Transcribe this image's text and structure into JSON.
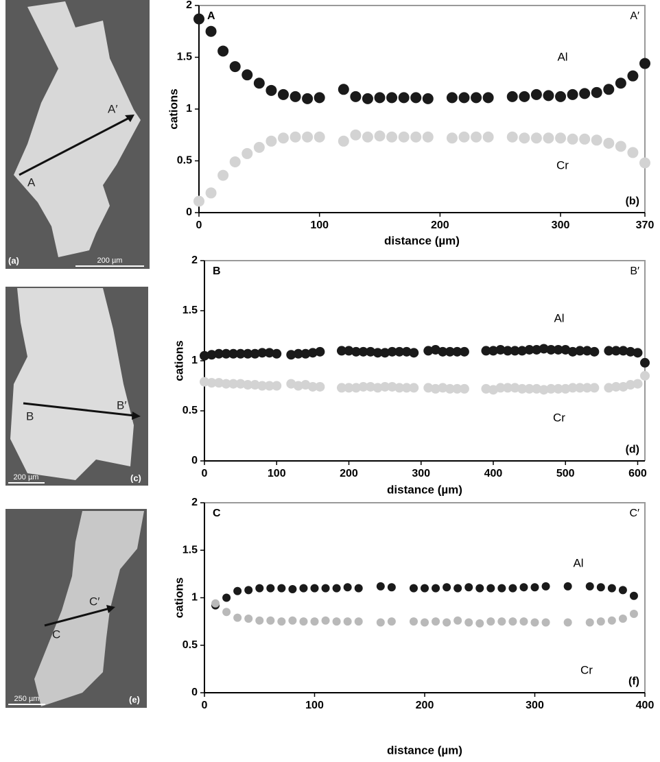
{
  "images": [
    {
      "panel": "(a)",
      "scale": "200 µm",
      "start": "A",
      "end": "A′"
    },
    {
      "panel": "(c)",
      "scale": "200 µm",
      "start": "B",
      "end": "B′"
    },
    {
      "panel": "(e)",
      "scale": "250 µm",
      "start": "C",
      "end": "C′"
    }
  ],
  "chart_data": [
    {
      "type": "scatter",
      "xlabel": "distance (µm)",
      "ylabel": "cations",
      "start_label": "A",
      "end_label": "A′",
      "panel_label": "(b)",
      "xlim": [
        0,
        370
      ],
      "xticks": [
        0,
        100,
        200,
        300,
        370
      ],
      "ylim": [
        0,
        2
      ],
      "yticks": [
        0,
        0.5,
        1,
        1.5,
        2
      ],
      "series": [
        {
          "name": "Al",
          "color": "#1a1a1a",
          "x": [
            0,
            10,
            20,
            30,
            40,
            50,
            60,
            70,
            80,
            90,
            100,
            120,
            130,
            140,
            150,
            160,
            170,
            180,
            190,
            210,
            220,
            230,
            240,
            260,
            270,
            280,
            290,
            300,
            310,
            320,
            330,
            340,
            350,
            360,
            370
          ],
          "values": [
            1.87,
            1.75,
            1.56,
            1.41,
            1.33,
            1.25,
            1.18,
            1.14,
            1.12,
            1.1,
            1.11,
            1.19,
            1.12,
            1.1,
            1.11,
            1.11,
            1.11,
            1.11,
            1.1,
            1.11,
            1.11,
            1.11,
            1.11,
            1.12,
            1.12,
            1.14,
            1.13,
            1.12,
            1.14,
            1.15,
            1.16,
            1.19,
            1.25,
            1.32,
            1.44
          ]
        },
        {
          "name": "Cr",
          "color": "#d3d3d3",
          "x": [
            0,
            10,
            20,
            30,
            40,
            50,
            60,
            70,
            80,
            90,
            100,
            120,
            130,
            140,
            150,
            160,
            170,
            180,
            190,
            210,
            220,
            230,
            240,
            260,
            270,
            280,
            290,
            300,
            310,
            320,
            330,
            340,
            350,
            360,
            370
          ],
          "values": [
            0.11,
            0.19,
            0.36,
            0.49,
            0.57,
            0.63,
            0.69,
            0.72,
            0.73,
            0.73,
            0.73,
            0.69,
            0.75,
            0.73,
            0.74,
            0.73,
            0.73,
            0.73,
            0.73,
            0.72,
            0.73,
            0.73,
            0.73,
            0.73,
            0.72,
            0.72,
            0.72,
            0.72,
            0.71,
            0.71,
            0.7,
            0.67,
            0.64,
            0.58,
            0.48
          ]
        }
      ]
    },
    {
      "type": "scatter",
      "xlabel": "distance (µm)",
      "ylabel": "cations",
      "start_label": "B",
      "end_label": "B′",
      "panel_label": "(d)",
      "xlim": [
        0,
        610
      ],
      "xticks": [
        0,
        100,
        200,
        300,
        400,
        500,
        600
      ],
      "ylim": [
        0,
        2
      ],
      "yticks": [
        0,
        0.5,
        1,
        1.5,
        2
      ],
      "series": [
        {
          "name": "Al",
          "color": "#1a1a1a",
          "x": [
            0,
            10,
            20,
            30,
            40,
            50,
            60,
            70,
            80,
            90,
            100,
            120,
            130,
            140,
            150,
            160,
            190,
            200,
            210,
            220,
            230,
            240,
            250,
            260,
            270,
            280,
            290,
            310,
            320,
            330,
            340,
            350,
            360,
            390,
            400,
            410,
            420,
            430,
            440,
            450,
            460,
            470,
            480,
            490,
            500,
            510,
            520,
            530,
            540,
            560,
            570,
            580,
            590,
            600,
            610
          ],
          "values": [
            1.05,
            1.06,
            1.07,
            1.07,
            1.07,
            1.07,
            1.07,
            1.07,
            1.08,
            1.08,
            1.07,
            1.06,
            1.07,
            1.07,
            1.08,
            1.09,
            1.1,
            1.1,
            1.09,
            1.09,
            1.09,
            1.08,
            1.08,
            1.09,
            1.09,
            1.09,
            1.08,
            1.1,
            1.11,
            1.09,
            1.09,
            1.09,
            1.09,
            1.1,
            1.1,
            1.11,
            1.1,
            1.1,
            1.1,
            1.11,
            1.11,
            1.12,
            1.11,
            1.11,
            1.11,
            1.09,
            1.1,
            1.1,
            1.09,
            1.1,
            1.1,
            1.1,
            1.09,
            1.08,
            0.98
          ]
        },
        {
          "name": "Cr",
          "color": "#d3d3d3",
          "x": [
            0,
            10,
            20,
            30,
            40,
            50,
            60,
            70,
            80,
            90,
            100,
            120,
            130,
            140,
            150,
            160,
            190,
            200,
            210,
            220,
            230,
            240,
            250,
            260,
            270,
            280,
            290,
            310,
            320,
            330,
            340,
            350,
            360,
            390,
            400,
            410,
            420,
            430,
            440,
            450,
            460,
            470,
            480,
            490,
            500,
            510,
            520,
            530,
            540,
            560,
            570,
            580,
            590,
            600,
            610
          ],
          "values": [
            0.79,
            0.78,
            0.78,
            0.77,
            0.77,
            0.77,
            0.76,
            0.76,
            0.75,
            0.75,
            0.75,
            0.77,
            0.75,
            0.76,
            0.74,
            0.74,
            0.73,
            0.73,
            0.73,
            0.74,
            0.74,
            0.73,
            0.74,
            0.74,
            0.73,
            0.73,
            0.73,
            0.73,
            0.72,
            0.73,
            0.72,
            0.72,
            0.72,
            0.72,
            0.71,
            0.73,
            0.73,
            0.73,
            0.72,
            0.72,
            0.72,
            0.71,
            0.72,
            0.72,
            0.72,
            0.73,
            0.73,
            0.73,
            0.73,
            0.73,
            0.74,
            0.74,
            0.76,
            0.77,
            0.85
          ]
        }
      ]
    },
    {
      "type": "scatter",
      "xlabel": "distance (µm)",
      "ylabel": "cations",
      "start_label": "C",
      "end_label": "C′",
      "panel_label": "(f)",
      "xlim": [
        0,
        400
      ],
      "xticks": [
        0,
        100,
        200,
        300,
        400
      ],
      "ylim": [
        0,
        2
      ],
      "yticks": [
        0,
        0.5,
        1,
        1.5,
        2
      ],
      "series": [
        {
          "name": "Al",
          "color": "#1a1a1a",
          "x": [
            10,
            20,
            30,
            40,
            50,
            60,
            70,
            80,
            90,
            100,
            110,
            120,
            130,
            140,
            160,
            170,
            190,
            200,
            210,
            220,
            230,
            240,
            250,
            260,
            270,
            280,
            290,
            300,
            310,
            330,
            350,
            360,
            370,
            380,
            390
          ],
          "values": [
            0.92,
            1.0,
            1.07,
            1.08,
            1.1,
            1.1,
            1.1,
            1.09,
            1.1,
            1.1,
            1.1,
            1.1,
            1.11,
            1.1,
            1.12,
            1.11,
            1.1,
            1.1,
            1.1,
            1.11,
            1.1,
            1.11,
            1.1,
            1.1,
            1.1,
            1.1,
            1.11,
            1.11,
            1.12,
            1.12,
            1.12,
            1.11,
            1.1,
            1.08,
            1.02
          ]
        },
        {
          "name": "Cr",
          "color": "#b9b9b9",
          "x": [
            10,
            20,
            30,
            40,
            50,
            60,
            70,
            80,
            90,
            100,
            110,
            120,
            130,
            140,
            160,
            170,
            190,
            200,
            210,
            220,
            230,
            240,
            250,
            260,
            270,
            280,
            290,
            300,
            310,
            330,
            350,
            360,
            370,
            380,
            390
          ],
          "values": [
            0.94,
            0.85,
            0.79,
            0.78,
            0.76,
            0.76,
            0.75,
            0.76,
            0.75,
            0.75,
            0.76,
            0.75,
            0.75,
            0.75,
            0.74,
            0.75,
            0.75,
            0.74,
            0.75,
            0.74,
            0.76,
            0.74,
            0.73,
            0.75,
            0.75,
            0.75,
            0.75,
            0.74,
            0.74,
            0.74,
            0.74,
            0.75,
            0.76,
            0.78,
            0.83
          ]
        }
      ]
    }
  ]
}
